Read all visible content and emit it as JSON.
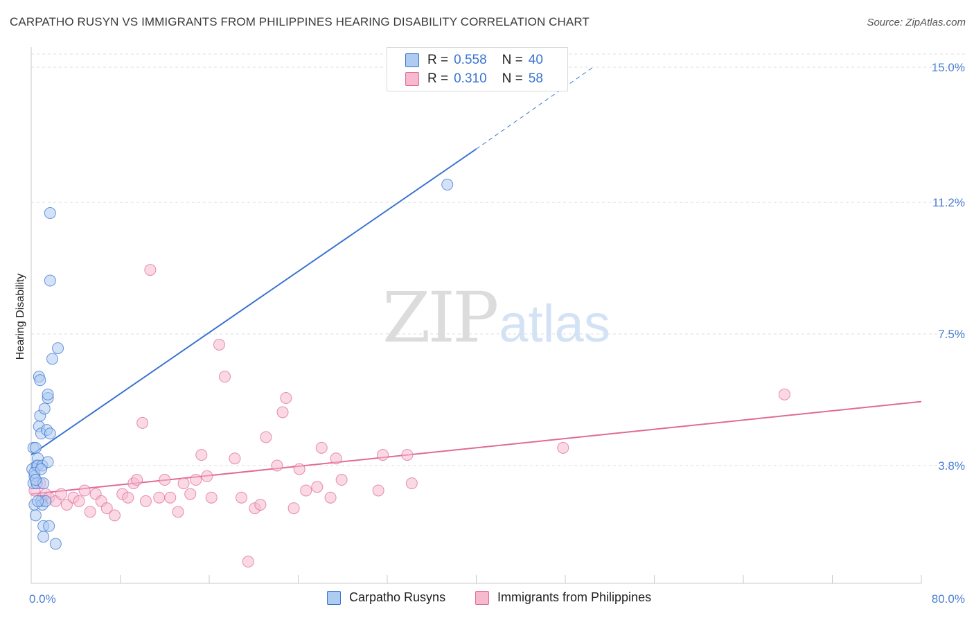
{
  "title": "CARPATHO RUSYN VS IMMIGRANTS FROM PHILIPPINES HEARING DISABILITY CORRELATION CHART",
  "source": "Source: ZipAtlas.com",
  "watermark": {
    "zip": "ZIP",
    "atlas": "atlas"
  },
  "legend": {
    "rows": [
      {
        "r_label": "R =",
        "r_value": "0.558",
        "n_label": "N =",
        "n_value": "40"
      },
      {
        "r_label": "R =",
        "r_value": "0.310",
        "n_label": "N =",
        "n_value": "58"
      }
    ]
  },
  "colors": {
    "blue": "#3a74d1",
    "blue_fill": "#aecbf1",
    "pink": "#e06a98",
    "pink_fill": "#f6b9cd",
    "grid": "#dddddd",
    "tick_label": "#4a7fd4"
  },
  "chart_data": {
    "type": "scatter",
    "title": "CARPATHO RUSYN VS IMMIGRANTS FROM PHILIPPINES HEARING DISABILITY CORRELATION CHART",
    "xlabel": "",
    "ylabel": "Hearing Disability",
    "xlim": [
      0,
      80
    ],
    "ylim": [
      0,
      15.5
    ],
    "y_ticks": [
      3.8,
      7.5,
      11.2,
      15.0
    ],
    "y_tick_labels": [
      "3.8%",
      "7.5%",
      "11.2%",
      "15.0%"
    ],
    "x_tick_labels": [
      "0.0%",
      "80.0%"
    ],
    "grid": true,
    "legend_position": "top-center",
    "series": [
      {
        "name": "Carpatho Rusyns",
        "color": "#3a74d1",
        "r": 0.558,
        "n": 40,
        "trend": {
          "x0": 0,
          "y0": 4.1,
          "x1": 40,
          "y1": 12.7,
          "dashed_to_x": 50.5,
          "dashed_to_y": 15.0
        },
        "points": [
          [
            0.1,
            3.7
          ],
          [
            0.2,
            4.3
          ],
          [
            0.2,
            3.3
          ],
          [
            0.3,
            3.5
          ],
          [
            0.3,
            2.7
          ],
          [
            0.4,
            2.4
          ],
          [
            0.4,
            4.3
          ],
          [
            0.5,
            3.8
          ],
          [
            0.5,
            3.3
          ],
          [
            0.6,
            4.0
          ],
          [
            0.6,
            3.8
          ],
          [
            0.7,
            6.3
          ],
          [
            0.7,
            4.9
          ],
          [
            0.8,
            6.2
          ],
          [
            0.8,
            5.2
          ],
          [
            0.9,
            2.8
          ],
          [
            0.9,
            4.7
          ],
          [
            1.0,
            3.8
          ],
          [
            1.0,
            2.7
          ],
          [
            1.1,
            3.3
          ],
          [
            1.1,
            2.1
          ],
          [
            1.1,
            1.8
          ],
          [
            1.2,
            5.4
          ],
          [
            1.3,
            2.8
          ],
          [
            1.4,
            4.8
          ],
          [
            1.5,
            5.7
          ],
          [
            1.5,
            3.9
          ],
          [
            1.5,
            5.8
          ],
          [
            1.6,
            2.1
          ],
          [
            1.7,
            9.0
          ],
          [
            1.7,
            4.7
          ],
          [
            1.7,
            10.9
          ],
          [
            1.9,
            6.8
          ],
          [
            2.2,
            1.6
          ],
          [
            2.4,
            7.1
          ],
          [
            0.3,
            3.6
          ],
          [
            0.4,
            3.4
          ],
          [
            0.6,
            2.8
          ],
          [
            0.9,
            3.7
          ],
          [
            37.4,
            11.7
          ]
        ]
      },
      {
        "name": "Immigrants from Philippines",
        "color": "#e06a98",
        "r": 0.31,
        "n": 58,
        "trend": {
          "x0": 0,
          "y0": 3.0,
          "x1": 80,
          "y1": 5.6
        },
        "points": [
          [
            0.3,
            3.1
          ],
          [
            0.8,
            3.3
          ],
          [
            1.0,
            2.9
          ],
          [
            1.3,
            3.0
          ],
          [
            1.6,
            2.9
          ],
          [
            2.2,
            2.8
          ],
          [
            2.7,
            3.0
          ],
          [
            3.2,
            2.7
          ],
          [
            3.8,
            2.9
          ],
          [
            4.3,
            2.8
          ],
          [
            4.8,
            3.1
          ],
          [
            5.3,
            2.5
          ],
          [
            5.8,
            3.0
          ],
          [
            6.3,
            2.8
          ],
          [
            6.8,
            2.6
          ],
          [
            7.5,
            2.4
          ],
          [
            8.2,
            3.0
          ],
          [
            8.7,
            2.9
          ],
          [
            9.2,
            3.3
          ],
          [
            9.5,
            3.4
          ],
          [
            10.0,
            5.0
          ],
          [
            10.3,
            2.8
          ],
          [
            10.7,
            9.3
          ],
          [
            11.5,
            2.9
          ],
          [
            12.0,
            3.4
          ],
          [
            12.5,
            2.9
          ],
          [
            13.2,
            2.5
          ],
          [
            13.7,
            3.3
          ],
          [
            14.3,
            3.0
          ],
          [
            14.8,
            3.4
          ],
          [
            15.3,
            4.1
          ],
          [
            15.8,
            3.5
          ],
          [
            16.2,
            2.9
          ],
          [
            16.9,
            7.2
          ],
          [
            17.4,
            6.3
          ],
          [
            18.3,
            4.0
          ],
          [
            18.9,
            2.9
          ],
          [
            19.5,
            1.1
          ],
          [
            20.1,
            2.6
          ],
          [
            20.6,
            2.7
          ],
          [
            21.1,
            4.6
          ],
          [
            22.1,
            3.8
          ],
          [
            22.6,
            5.3
          ],
          [
            22.9,
            5.7
          ],
          [
            23.6,
            2.6
          ],
          [
            24.1,
            3.7
          ],
          [
            24.7,
            3.1
          ],
          [
            25.7,
            3.2
          ],
          [
            26.1,
            4.3
          ],
          [
            26.9,
            2.9
          ],
          [
            27.4,
            4.0
          ],
          [
            27.9,
            3.4
          ],
          [
            31.2,
            3.1
          ],
          [
            31.6,
            4.1
          ],
          [
            33.8,
            4.1
          ],
          [
            34.2,
            3.3
          ],
          [
            47.8,
            4.3
          ],
          [
            67.7,
            5.8
          ]
        ]
      }
    ]
  }
}
